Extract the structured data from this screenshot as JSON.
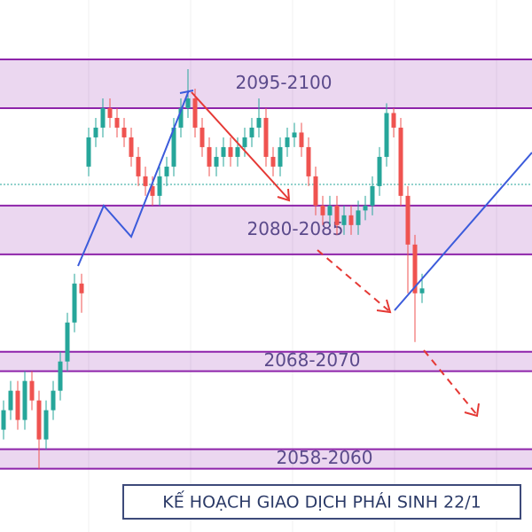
{
  "chart_data": {
    "type": "candlestick",
    "title": "KẾ HOẠCH GIAO DỊCH PHÁI SINH 22/1",
    "ylim": [
      2051.5,
      2106.1
    ],
    "up_color": "#26a69a",
    "down_color": "#ef5350",
    "zone_color": "#8e24aa",
    "zones": [
      {
        "label": "2095-2100",
        "low": 2095,
        "high": 2100
      },
      {
        "label": "2080-2085",
        "low": 2080,
        "high": 2085
      },
      {
        "label": "2068-2070",
        "low": 2068,
        "high": 2070
      },
      {
        "label": "2058-2060",
        "low": 2058,
        "high": 2060
      }
    ],
    "open": [
      2062,
      2064,
      2066,
      2063,
      2067,
      2065,
      2061,
      2064,
      2066,
      2069,
      2073,
      2077,
      2089,
      2092,
      2093,
      2095,
      2094,
      2093,
      2092,
      2090,
      2088,
      2087,
      2086,
      2088,
      2089,
      2093,
      2095,
      2096,
      2093,
      2091,
      2089,
      2090,
      2091,
      2090,
      2091,
      2092,
      2093,
      2094,
      2090,
      2089,
      2091,
      2092,
      2092.5,
      2091,
      2088,
      2085,
      2084,
      2085,
      2083,
      2084,
      2083,
      2084.5,
      2085,
      2087,
      2090,
      2094.5,
      2093,
      2086,
      2081,
      2076
    ],
    "high": [
      2065,
      2067,
      2067,
      2068,
      2068,
      2066,
      2065,
      2067,
      2070,
      2074,
      2078,
      2078,
      2093,
      2094,
      2096,
      2096,
      2095,
      2094,
      2093,
      2091,
      2089,
      2088,
      2089,
      2090,
      2094,
      2096,
      2099,
      2097,
      2094,
      2092,
      2091,
      2092,
      2092,
      2092,
      2093,
      2094,
      2096,
      2095,
      2091,
      2092,
      2093,
      2093.5,
      2093.5,
      2092,
      2089,
      2086,
      2086,
      2086,
      2085,
      2085,
      2085.5,
      2086,
      2088,
      2091,
      2095.5,
      2095,
      2094,
      2087,
      2082,
      2078
    ],
    "low": [
      2061,
      2063,
      2062,
      2062,
      2064,
      2058,
      2060,
      2063,
      2065,
      2068,
      2072,
      2074,
      2088,
      2091,
      2092,
      2093,
      2092,
      2091,
      2089,
      2087,
      2086,
      2085,
      2085,
      2087,
      2088,
      2092,
      2094,
      2092,
      2090,
      2088,
      2088,
      2089,
      2089,
      2089,
      2090,
      2091,
      2092,
      2089,
      2088,
      2088,
      2090,
      2091,
      2090,
      2087,
      2084,
      2083,
      2083,
      2082,
      2082,
      2082,
      2082,
      2083.5,
      2084,
      2086,
      2089,
      2092,
      2085,
      2076,
      2071,
      2075
    ],
    "close": [
      2064,
      2066,
      2063,
      2067,
      2065,
      2061,
      2064,
      2066,
      2069,
      2073,
      2077,
      2076,
      2092,
      2093,
      2095,
      2094,
      2093,
      2092,
      2090,
      2088,
      2087,
      2086,
      2088,
      2089,
      2093,
      2095,
      2096,
      2093,
      2091,
      2089,
      2090,
      2091,
      2090,
      2091,
      2092,
      2093,
      2094,
      2090,
      2089,
      2091,
      2092,
      2092.5,
      2091,
      2088,
      2085,
      2084,
      2085,
      2083,
      2084,
      2083,
      2084.5,
      2085,
      2087,
      2090,
      2094.5,
      2093,
      2086,
      2081,
      2076,
      2076.5
    ]
  }
}
